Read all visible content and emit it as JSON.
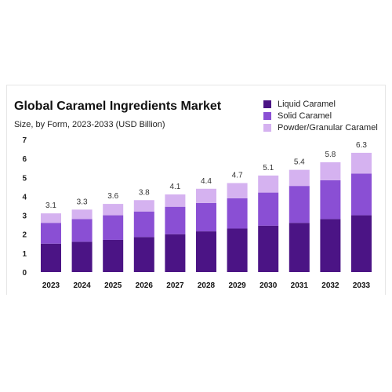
{
  "chart_data": {
    "type": "bar",
    "stacked": true,
    "title": "Global Caramel Ingredients Market",
    "subtitle": "Size, by Form, 2023-2033 (USD Billion)",
    "categories": [
      "2023",
      "2024",
      "2025",
      "2026",
      "2027",
      "2028",
      "2029",
      "2030",
      "2031",
      "2032",
      "2033"
    ],
    "totals": [
      "3.1",
      "3.3",
      "3.6",
      "3.8",
      "4.1",
      "4.4",
      "4.7",
      "5.1",
      "5.4",
      "5.8",
      "6.3"
    ],
    "series": [
      {
        "name": "Liquid Caramel",
        "color": "#4b1485",
        "values": [
          1.5,
          1.6,
          1.7,
          1.85,
          2.0,
          2.15,
          2.3,
          2.45,
          2.6,
          2.8,
          3.0
        ]
      },
      {
        "name": "Solid Caramel",
        "color": "#8a4fd4",
        "values": [
          1.1,
          1.2,
          1.3,
          1.35,
          1.45,
          1.5,
          1.6,
          1.75,
          1.95,
          2.05,
          2.2
        ]
      },
      {
        "name": "Powder/Granular Caramel",
        "color": "#d5b2f0",
        "values": [
          0.5,
          0.5,
          0.6,
          0.6,
          0.65,
          0.75,
          0.8,
          0.9,
          0.85,
          0.95,
          1.1
        ]
      }
    ],
    "y_ticks": [
      "0",
      "1",
      "2",
      "3",
      "4",
      "5",
      "6",
      "7"
    ],
    "ylim": [
      0,
      7
    ],
    "grid": false,
    "legend_position": "top-right"
  }
}
